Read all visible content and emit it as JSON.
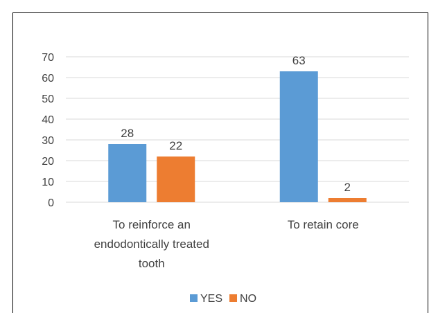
{
  "chart_data": {
    "type": "bar",
    "categories": [
      [
        "To reinforce an",
        "endodontically treated",
        "tooth"
      ],
      [
        "To retain core"
      ]
    ],
    "series": [
      {
        "name": "YES",
        "values": [
          28,
          63
        ],
        "color": "#5B9BD5"
      },
      {
        "name": "NO",
        "values": [
          22,
          2
        ],
        "color": "#ED7D31"
      }
    ],
    "ylim": [
      0,
      70
    ],
    "yticks": [
      "0",
      "10",
      "20",
      "30",
      "40",
      "50",
      "60",
      "70"
    ],
    "grid": true,
    "legend_position": "bottom",
    "gridline_color": "#d9d9d9"
  }
}
